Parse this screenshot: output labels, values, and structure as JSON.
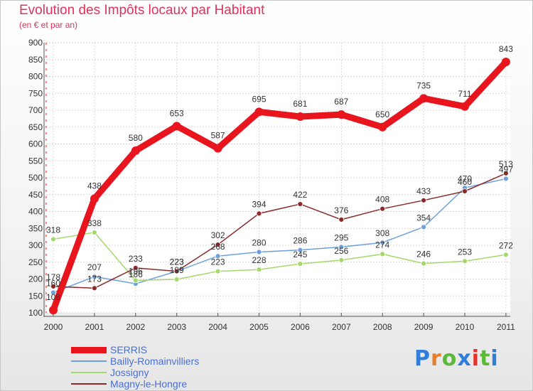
{
  "title": "Evolution des Impôts locaux par Habitant",
  "subtitle": "(en € et par an)",
  "logo": {
    "text": "Proxiti",
    "colors": [
      "#2f7fd8",
      "#e8802a",
      "#5ab83a",
      "#2f7fd8",
      "#e8302a",
      "#5ab83a",
      "#2f7fd8"
    ]
  },
  "chart_data": {
    "type": "line",
    "x": [
      "2000",
      "2001",
      "2002",
      "2003",
      "2004",
      "2005",
      "2006",
      "2007",
      "2008",
      "2009",
      "2010",
      "2011"
    ],
    "ylim": [
      100,
      900
    ],
    "yticks": [
      "100",
      "150",
      "200",
      "250",
      "300",
      "350",
      "400",
      "450",
      "500",
      "550",
      "600",
      "650",
      "700",
      "750",
      "800",
      "850",
      "900"
    ],
    "grid": true,
    "legend_position": "bottom-left",
    "series": [
      {
        "name": "SERRIS",
        "color": "#e8141e",
        "emphasis": true,
        "values": [
          108,
          438,
          580,
          653,
          587,
          695,
          681,
          687,
          650,
          735,
          711,
          843
        ],
        "labels": [
          "108",
          "438",
          "580",
          "653",
          "587",
          "695",
          "681",
          "687",
          "650",
          "735",
          "711",
          "843"
        ]
      },
      {
        "name": "Bailly-Romainvilliers",
        "color": "#6fa0dc",
        "values": [
          160,
          207,
          186,
          223,
          268,
          280,
          286,
          295,
          308,
          354,
          470,
          497
        ],
        "labels": [
          "160",
          "207",
          "186",
          "223",
          "268",
          "280",
          "286",
          "295",
          "308",
          "354",
          "470",
          "497"
        ]
      },
      {
        "name": "Jossigny",
        "color": "#a5d86a",
        "values": [
          318,
          338,
          196,
          199,
          223,
          228,
          245,
          256,
          274,
          246,
          253,
          272
        ],
        "labels": [
          "318",
          "338",
          "196",
          "199",
          "223",
          "228",
          "245",
          "256",
          "274",
          "246",
          "253",
          "272"
        ]
      },
      {
        "name": "Magny-le-Hongre",
        "color": "#8b2a2a",
        "values": [
          178,
          173,
          233,
          223,
          302,
          394,
          422,
          376,
          408,
          433,
          460,
          513
        ],
        "labels": [
          "178",
          "173",
          "233",
          "223",
          "302",
          "394",
          "422",
          "376",
          "408",
          "433",
          "460",
          "513"
        ]
      }
    ]
  }
}
